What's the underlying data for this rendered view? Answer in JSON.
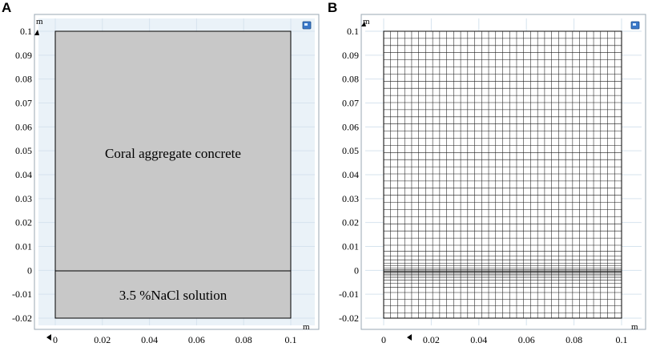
{
  "panels": [
    {
      "id": "A",
      "letter": "A",
      "unit_x": "m",
      "unit_y": "m",
      "x_ticks": [
        "0",
        "0.02",
        "0.04",
        "0.06",
        "0.08",
        "0.1"
      ],
      "y_ticks": [
        "0.1",
        "0.09",
        "0.08",
        "0.07",
        "0.06",
        "0.05",
        "0.04",
        "0.03",
        "0.02",
        "0.01",
        "0",
        "-0.01",
        "-0.02"
      ],
      "regions": {
        "upper": "Coral aggregate concrete",
        "lower": "3.5 %NaCl solution"
      }
    },
    {
      "id": "B",
      "letter": "B",
      "unit_x": "m",
      "unit_y": "m",
      "x_ticks": [
        "0",
        "0.02",
        "0.04",
        "0.06",
        "0.08",
        "0.1"
      ],
      "y_ticks": [
        "0.1",
        "0.09",
        "0.08",
        "0.07",
        "0.06",
        "0.05",
        "0.04",
        "0.03",
        "0.02",
        "0.01",
        "0",
        "-0.01",
        "-0.02"
      ]
    }
  ],
  "colors": {
    "viewport_background": "#eaf2f8",
    "domain_fill": "#c8c8c8",
    "mesh_stroke": "#1a1a1a",
    "grid": "#d6e3ee"
  }
}
